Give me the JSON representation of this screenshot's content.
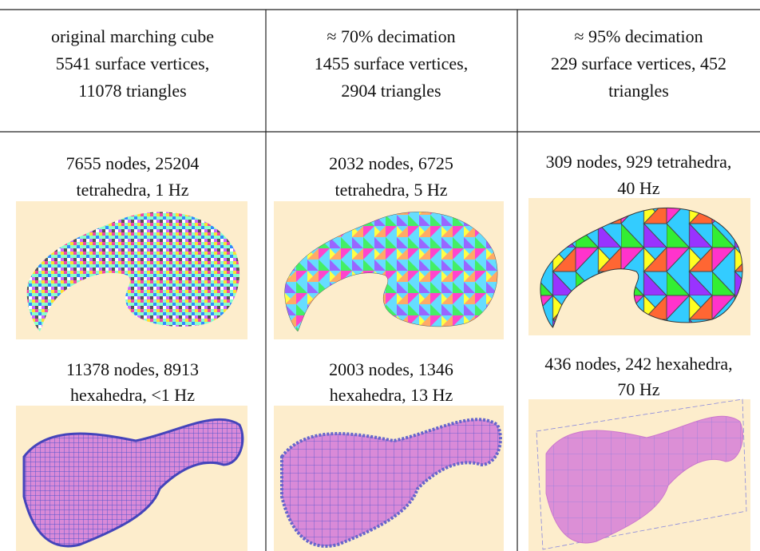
{
  "table": {
    "header": [
      [
        "original marching cube",
        "5541 surface vertices,",
        "11078 triangles"
      ],
      [
        "≈ 70% decimation",
        "1455 surface vertices,",
        "2904 triangles"
      ],
      [
        "≈ 95% decimation",
        "229 surface vertices, 452",
        "triangles"
      ]
    ],
    "rows": [
      [
        [
          "7655 nodes, 25204",
          "tetrahedra, 1 Hz"
        ],
        [
          "2032 nodes, 6725",
          "tetrahedra, 5 Hz"
        ],
        [
          "309 nodes, 929 tetrahedra,",
          "40 Hz"
        ]
      ],
      [
        [
          "11378 nodes, 8913",
          "hexahedra, <1 Hz"
        ],
        [
          "2003 nodes, 1346",
          "hexahedra, 13 Hz"
        ],
        [
          "436 nodes, 242 hexahedra,",
          "70 Hz"
        ]
      ]
    ]
  }
}
